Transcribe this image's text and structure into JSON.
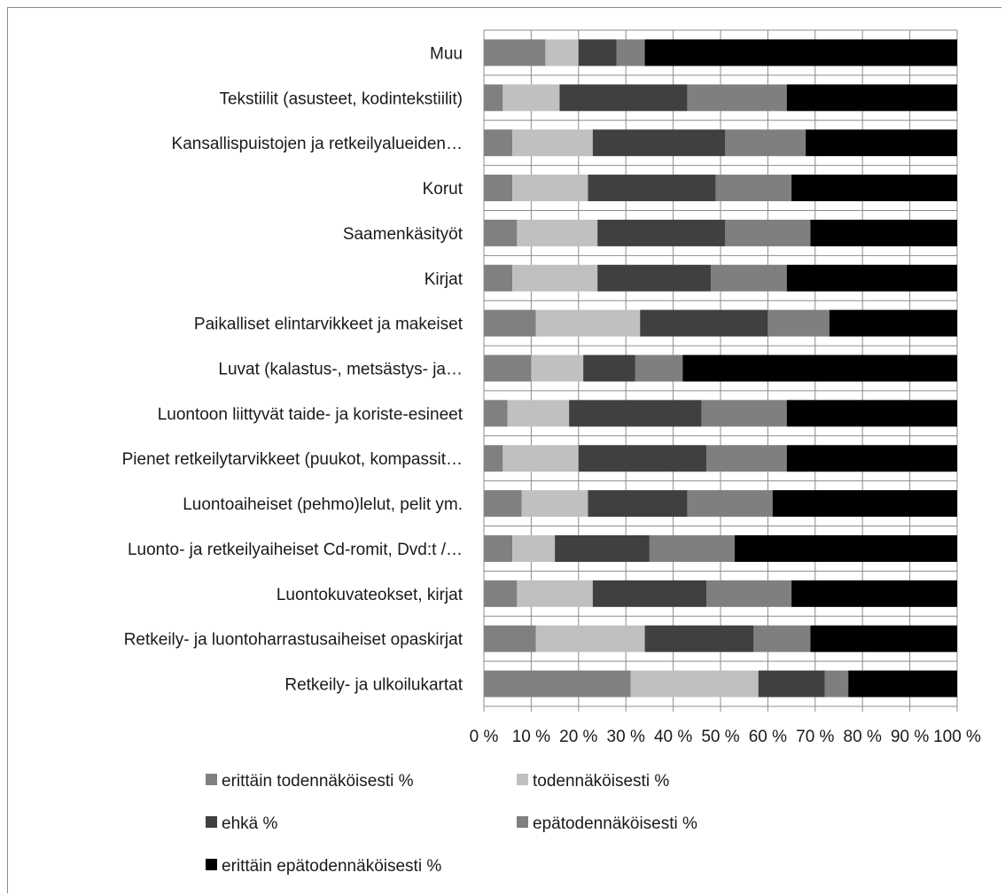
{
  "chart_data": {
    "type": "bar",
    "orientation": "horizontal",
    "stacked": "percent",
    "title": "",
    "xlabel": "",
    "ylabel": "",
    "xlim": [
      0,
      100
    ],
    "x_ticks": [
      "0 %",
      "10 %",
      "20 %",
      "30 %",
      "40 %",
      "50 %",
      "60 %",
      "70 %",
      "80 %",
      "90 %",
      "100 %"
    ],
    "grid": true,
    "legend_position": "bottom",
    "categories": [
      "Muu",
      "Tekstiilit (asusteet, kodintekstiilit)",
      "Kansallispuistojen ja retkeilyalueiden…",
      "Korut",
      "Saamenkäsityöt",
      "Kirjat",
      "Paikalliset elintarvikkeet ja makeiset",
      "Luvat (kalastus-, metsästys- ja…",
      "Luontoon liittyvät taide- ja koriste-esineet",
      "Pienet retkeilytarvikkeet (puukot, kompassit…",
      "Luontoaiheiset (pehmo)lelut, pelit ym.",
      "Luonto- ja retkeilyaiheiset Cd-romit, Dvd:t /…",
      "Luontokuvateokset, kirjat",
      "Retkeily- ja luontoharrastusaiheiset opaskirjat",
      "Retkeily- ja ulkoilukartat"
    ],
    "series": [
      {
        "name": "erittäin todennäköisesti %",
        "color": "#808080",
        "values": [
          13,
          4,
          6,
          6,
          7,
          6,
          11,
          10,
          5,
          4,
          8,
          6,
          7,
          11,
          31
        ]
      },
      {
        "name": "todennäköisesti %",
        "color": "#c0c0c0",
        "values": [
          7,
          12,
          17,
          16,
          17,
          18,
          22,
          11,
          13,
          16,
          14,
          9,
          16,
          23,
          27
        ]
      },
      {
        "name": "ehkä %",
        "color": "#404040",
        "values": [
          8,
          27,
          28,
          27,
          27,
          24,
          27,
          11,
          28,
          27,
          21,
          20,
          24,
          23,
          14
        ]
      },
      {
        "name": "epätodennäköisesti %",
        "color": "#7f7f7f",
        "values": [
          6,
          21,
          17,
          16,
          18,
          16,
          13,
          10,
          18,
          17,
          18,
          18,
          18,
          12,
          5
        ]
      },
      {
        "name": "erittäin epätodennäköisesti %",
        "color": "#000000",
        "values": [
          66,
          36,
          32,
          35,
          31,
          36,
          27,
          58,
          36,
          36,
          39,
          47,
          35,
          31,
          23
        ]
      }
    ]
  }
}
